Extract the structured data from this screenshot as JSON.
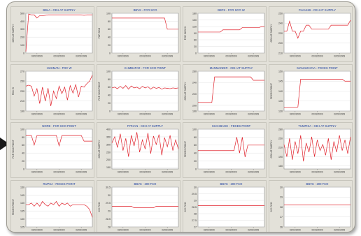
{
  "colors": {
    "series": "#e0202a",
    "panel_bg": "#e3e1d9",
    "plot_bg": "#ffffff",
    "title": "#1c3fa0",
    "grid": "#d9d9d9"
  },
  "chart_data": [
    {
      "type": "line",
      "title": "BBLA - CEH AT SUPPLY",
      "ylabel": "CEH AT SUPPLY",
      "ylim": [
        0,
        500
      ],
      "yticks": [
        "500",
        "400",
        "300",
        "200",
        "100",
        "0"
      ],
      "xticks": [
        "02/02/2009",
        "02/02/2009",
        "02/02/2009"
      ],
      "series": [
        {
          "values": [
            20,
            490,
            480,
            480,
            440,
            470,
            470,
            475,
            480,
            480,
            480,
            480,
            480,
            480,
            480,
            480,
            480,
            480,
            480,
            480,
            480,
            475,
            480,
            480,
            480
          ]
        }
      ]
    },
    {
      "type": "line",
      "title": "BBVS - FCR SCO",
      "ylabel": "FCR SCO",
      "ylim": [
        0,
        100
      ],
      "yticks": [
        "100",
        "80",
        "60",
        "40",
        "20",
        "0"
      ],
      "xticks": [
        "02/02/2009",
        "02/02/2009",
        "02/02/2009"
      ],
      "series": [
        {
          "values": [
            88,
            88,
            88,
            88,
            88,
            88,
            88,
            88,
            88,
            88,
            88,
            88,
            88,
            88,
            88,
            88,
            88,
            88,
            88,
            88,
            60,
            60,
            60,
            60,
            60
          ]
        }
      ]
    },
    {
      "type": "line",
      "title": "BBFS - FCR SCO W",
      "ylabel": "FCR SCO W",
      "ylim": [
        0,
        180
      ],
      "yticks": [
        "180",
        "150",
        "120",
        "90",
        "60",
        "30",
        "0"
      ],
      "xticks": [
        "02/02/2009",
        "02/02/2009",
        "02/02/2009"
      ],
      "series": [
        {
          "values": [
            95,
            95,
            95,
            95,
            95,
            95,
            95,
            95,
            95,
            105,
            105,
            105,
            105,
            105,
            105,
            105,
            115,
            115,
            115,
            115,
            115,
            115,
            115,
            120,
            120
          ]
        }
      ]
    },
    {
      "type": "line",
      "title": "FHAUHB - CEH AT SUPPLY",
      "ylabel": "CEH AT SUPPLY",
      "ylim": [
        210,
        250
      ],
      "yticks": [
        "250",
        "240",
        "230",
        "220",
        "210"
      ],
      "xticks": [
        "02/02/2009",
        "02/02/2009",
        "02/02/2009"
      ],
      "series": [
        {
          "values": [
            232,
            232,
            242,
            232,
            232,
            225,
            232,
            232,
            238,
            238,
            234,
            234,
            234,
            234,
            234,
            234,
            234,
            238,
            238,
            238,
            238,
            238,
            238,
            238,
            243
          ]
        }
      ]
    },
    {
      "type": "line",
      "title": "HUHMAN - FDC W",
      "ylabel": "FDC W",
      "ylim": [
        190,
        270
      ],
      "yticks": [
        "270",
        "250",
        "230",
        "210",
        "190"
      ],
      "xticks": [
        "02/02/2009",
        "02/02/2009",
        "02/02/2009"
      ],
      "series": [
        {
          "values": [
            240,
            242,
            240,
            220,
            235,
            205,
            238,
            210,
            236,
            200,
            230,
            215,
            240,
            225,
            238,
            212,
            241,
            226,
            243,
            218,
            240,
            238,
            245,
            250,
            262
          ]
        }
      ]
    },
    {
      "type": "line",
      "title": "KHMBATAR - FCR SCO POINT",
      "ylabel": "FCR SCO POINT",
      "ylim": [
        0,
        100
      ],
      "yticks": [
        "100",
        "80",
        "60",
        "40",
        "20",
        "0"
      ],
      "xticks": [
        "02/02/2009",
        "02/02/2009",
        "02/02/2009"
      ],
      "series": [
        {
          "values": [
            58,
            60,
            56,
            62,
            57,
            64,
            55,
            63,
            58,
            60,
            56,
            62,
            58,
            61,
            55,
            60,
            57,
            59,
            55,
            58,
            57,
            56,
            58,
            57,
            58
          ]
        }
      ]
    },
    {
      "type": "line",
      "title": "MANMANDIR - CEH AT SUPPLY",
      "ylabel": "CEH AT SUPPLY",
      "ylim": [
        190,
        260
      ],
      "yticks": [
        "260",
        "240",
        "220",
        "200",
        "190"
      ],
      "xticks": [
        "02/02/2009",
        "02/02/2009",
        "02/02/2009"
      ],
      "series": [
        {
          "values": [
            205,
            205,
            205,
            205,
            205,
            205,
            250,
            250,
            250,
            250,
            250,
            250,
            250,
            250,
            250,
            250,
            250,
            250,
            250,
            250,
            244,
            244,
            244,
            244,
            244
          ]
        }
      ]
    },
    {
      "type": "line",
      "title": "MANAMAYNA - FDCES POINT",
      "ylabel": "FDCES POINT",
      "ylim": [
        130,
        150
      ],
      "yticks": [
        "150",
        "145",
        "140",
        "135",
        "130"
      ],
      "xticks": [
        "02/02/2009",
        "02/02/2009",
        "02/02/2009"
      ],
      "series": [
        {
          "values": [
            132,
            132,
            132,
            132,
            132,
            132,
            146,
            146,
            146,
            146,
            146,
            146,
            146,
            146,
            146,
            146,
            146,
            146,
            146,
            146,
            146,
            146,
            145,
            145,
            145
          ]
        }
      ]
    },
    {
      "type": "line",
      "title": "NORE - FCR SCO POINT",
      "ylabel": "FCR SCO POINT",
      "ylim": [
        0,
        100
      ],
      "yticks": [
        "100",
        "80",
        "60",
        "40",
        "20",
        "0"
      ],
      "xticks": [
        "02/02/2009",
        "02/02/2009",
        "02/02/2009"
      ],
      "series": [
        {
          "values": [
            84,
            84,
            84,
            60,
            84,
            84,
            84,
            84,
            84,
            84,
            84,
            84,
            58,
            84,
            84,
            84,
            84,
            84,
            84,
            84,
            84,
            70,
            70,
            70,
            70
          ]
        }
      ]
    },
    {
      "type": "line",
      "title": "PITHAN - CEH AT SUPPLY",
      "ylabel": "CEH AT SUPPLY",
      "ylim": [
        140,
        400
      ],
      "yticks": [
        "400",
        "350",
        "300",
        "250",
        "200",
        "150"
      ],
      "xticks": [
        "02/02/2009",
        "02/02/2009",
        "02/02/2009"
      ],
      "series": [
        {
          "values": [
            310,
            350,
            280,
            370,
            260,
            340,
            220,
            360,
            290,
            380,
            250,
            330,
            270,
            375,
            240,
            355,
            300,
            365,
            230,
            345,
            285,
            360,
            260,
            330,
            270
          ]
        }
      ]
    },
    {
      "type": "line",
      "title": "SHAHBAGH - FDCES POINT",
      "ylabel": "FDCES POINT",
      "ylim": [
        0,
        100
      ],
      "yticks": [
        "100",
        "80",
        "60",
        "40",
        "20",
        "0"
      ],
      "xticks": [
        "02/02/2009",
        "02/02/2009",
        "02/02/2009"
      ],
      "series": [
        {
          "values": [
            46,
            46,
            46,
            46,
            46,
            46,
            46,
            46,
            46,
            46,
            46,
            46,
            46,
            46,
            80,
            40,
            80,
            30,
            60,
            60,
            60,
            60,
            60,
            60,
            60
          ]
        }
      ]
    },
    {
      "type": "line",
      "title": "TUMPISA - CEH AT SUPPLY",
      "ylabel": "CEH AT SUPPLY",
      "ylim": [
        150,
        280
      ],
      "yticks": [
        "280",
        "250",
        "220",
        "190",
        "160"
      ],
      "xticks": [
        "02/02/2009",
        "02/02/2009",
        "02/02/2009"
      ],
      "series": [
        {
          "values": [
            230,
            190,
            250,
            180,
            240,
            200,
            260,
            175,
            235,
            205,
            255,
            190,
            245,
            210,
            230,
            195,
            250,
            180,
            240,
            205,
            260,
            210,
            245,
            200,
            255
          ]
        }
      ]
    },
    {
      "type": "line",
      "title": "RUPSA - FDCES POINT",
      "ylabel": "FDCES POINT",
      "ylim": [
        125,
        150
      ],
      "yticks": [
        "150",
        "145",
        "140",
        "135",
        "130",
        "125"
      ],
      "xticks": [
        "02/02/2009",
        "02/02/2009",
        "02/02/2009"
      ],
      "series": [
        {
          "values": [
            139,
            139,
            140,
            138,
            140,
            138,
            141,
            139,
            138,
            140,
            139,
            141,
            138,
            140,
            139,
            140,
            138,
            139,
            139,
            139,
            139,
            139,
            138,
            136,
            131
          ]
        }
      ]
    },
    {
      "type": "line",
      "title": "BBVS - 200 FCO",
      "ylabel": "200 FCO",
      "ylim": [
        28,
        30.5
      ],
      "yticks": [
        "30.5",
        "30",
        "29.5",
        "29",
        "28.5",
        "28"
      ],
      "xticks": [
        "02/02/2009",
        "02/02/2009",
        "02/02/2009"
      ],
      "series": [
        {
          "values": [
            29.3,
            29.3,
            29.3,
            29.3,
            29.3,
            29.3,
            29.3,
            29.3,
            29.2,
            29.2,
            29.2,
            29.2,
            29.2,
            29.2,
            29.2,
            29.2,
            29.3,
            29.3,
            29.3,
            29.3,
            29.3,
            29.3,
            29.3,
            29.3,
            29.3
          ]
        }
      ]
    },
    {
      "type": "line",
      "title": "BBVS - 200 FCO",
      "ylabel": "200 FCO",
      "ylim": [
        27,
        30
      ],
      "yticks": [
        "30",
        "29.5",
        "29",
        "28.5",
        "28",
        "27.5",
        "27"
      ],
      "xticks": [
        "02/02/2009",
        "02/02/2009",
        "02/02/2009"
      ],
      "series": [
        {
          "values": [
            28.6,
            28.6,
            28.6,
            28.6,
            28.6,
            28.6,
            28.6,
            28.6,
            28.6,
            28.6,
            28.6,
            28.6,
            28.6,
            28.6,
            28.6,
            28.6,
            28.6,
            28.6,
            28.6,
            28.6,
            28.6,
            28.6,
            28.6,
            28.6,
            28.6
          ]
        }
      ]
    },
    {
      "type": "line",
      "title": "BBVS - 200 FCO",
      "ylabel": "200 FCO",
      "ylim": [
        26,
        30
      ],
      "yticks": [
        "30",
        "29",
        "28",
        "27",
        "26"
      ],
      "xticks": [
        "02/02/2009",
        "02/02/2009",
        "02/02/2009"
      ],
      "series": [
        {
          "values": [
            28.2,
            28.2,
            28.2,
            28.2,
            28.2,
            28.2,
            28.2,
            28.2,
            28.2,
            28.2,
            28.2,
            28.2,
            28.2,
            28.2,
            28.2,
            28.2,
            28.2,
            28.2,
            28.2,
            28.2,
            28.2,
            28.2,
            28.2,
            28.2,
            28.2
          ]
        }
      ]
    }
  ]
}
